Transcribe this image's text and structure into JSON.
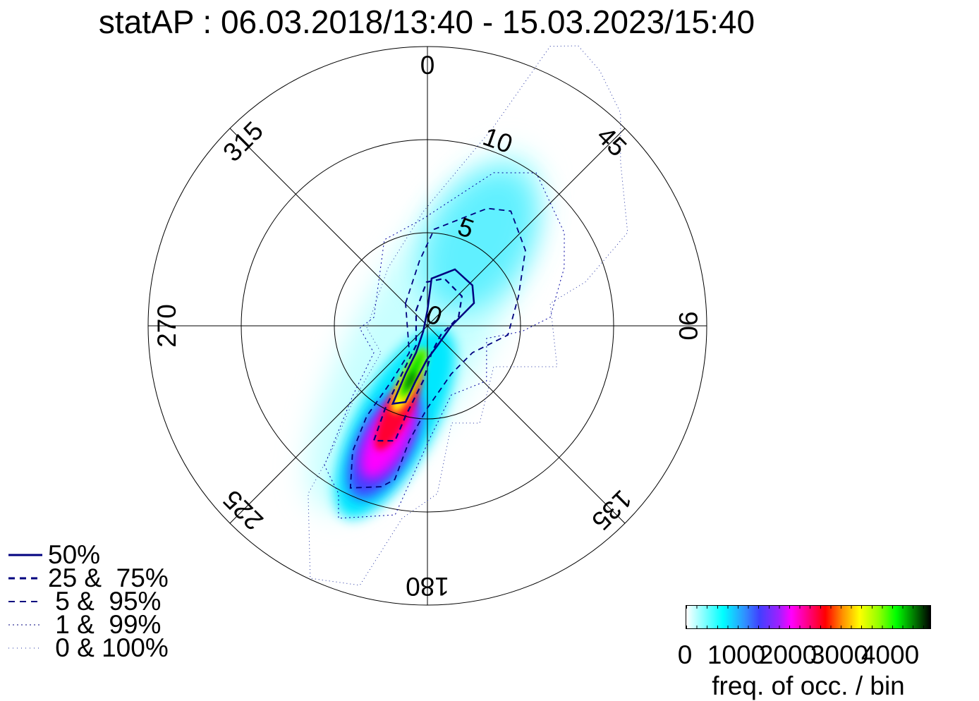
{
  "chart_data": {
    "type": "polar-contour",
    "title": "statAP : 06.03.2018/13:40 - 15.03.2023/15:40",
    "angular_ticks": [
      "0",
      "45",
      "90",
      "135",
      "180",
      "225",
      "270",
      "315"
    ],
    "radial_ticks": [
      "0",
      "5",
      "10"
    ],
    "radial_max": 15,
    "colorbar": {
      "label": "freq. of occ. / bin",
      "ticks": [
        "0",
        "1000",
        "2000",
        "3000",
        "4000"
      ],
      "range": [
        0,
        4770
      ]
    },
    "legend": [
      "50%",
      "25 &  75%",
      " 5 &  95%",
      " 1 &  99%",
      " 0 & 100%"
    ],
    "contours": [
      {
        "level": "50%",
        "points": [
          [
            0,
            0.83
          ],
          [
            5,
            2.55
          ],
          [
            26,
            3.37
          ],
          [
            48,
            3.25
          ],
          [
            64,
            2.78
          ],
          [
            90,
            1.29
          ],
          [
            153,
            1.19
          ],
          [
            181,
            1.82
          ],
          [
            192,
            3.02
          ],
          [
            196,
            4.26
          ],
          [
            204,
            4.58
          ],
          [
            204.5,
            2.83
          ],
          [
            203,
            1.56
          ],
          [
            217,
            0.38
          ]
        ]
      },
      {
        "level": "25 & 75%",
        "points": [
          [
            324,
            1.03
          ],
          [
            359,
            2.35
          ],
          [
            19.7,
            2.7
          ],
          [
            49.4,
            2.44
          ],
          [
            74.7,
            1.73
          ],
          [
            124,
            0.87
          ],
          [
            171,
            1.46
          ],
          [
            184.4,
            2.96
          ],
          [
            193.6,
            4.99
          ],
          [
            195.8,
            6.42
          ],
          [
            205,
            6.81
          ],
          [
            207,
            5.03
          ],
          [
            208,
            2.91
          ],
          [
            210,
            1.22
          ]
        ]
      },
      {
        "level": "5 & 95%",
        "points": [
          [
            316,
            1.69
          ],
          [
            353,
            3.51
          ],
          [
            4,
            5.2
          ],
          [
            27,
            7.08
          ],
          [
            36,
            7.62
          ],
          [
            52.4,
            6.64
          ],
          [
            72,
            5.14
          ],
          [
            96.5,
            4.35
          ],
          [
            120.7,
            2.82
          ],
          [
            153.4,
            2.88
          ],
          [
            180.5,
            4.47
          ],
          [
            189,
            6.25
          ],
          [
            192,
            8.44
          ],
          [
            196,
            8.99
          ],
          [
            205.4,
            9.64
          ],
          [
            210.8,
            7.85
          ],
          [
            213.9,
            5.84
          ],
          [
            213,
            3.53
          ],
          [
            214,
            1.74
          ]
        ]
      },
      {
        "level": "1 & 99%",
        "points": [
          [
            268,
            3.64
          ],
          [
            279,
            2.91
          ],
          [
            333.4,
            5.17
          ],
          [
            357.7,
            5.76
          ],
          [
            23.4,
            8.96
          ],
          [
            35.4,
            10.08
          ],
          [
            55.8,
            8.89
          ],
          [
            67,
            7.98
          ],
          [
            86,
            6.61
          ],
          [
            93.4,
            5.08
          ],
          [
            102,
            3.25
          ],
          [
            133,
            4.34
          ],
          [
            161,
            3.93
          ],
          [
            178.5,
            5.99
          ],
          [
            189.7,
            10.3
          ],
          [
            204.8,
            11.39
          ],
          [
            207.9,
            10.2
          ],
          [
            216.4,
            9.32
          ],
          [
            227,
            5.47
          ],
          [
            243.4,
            3.22
          ]
        ]
      },
      {
        "level": "0 & 100%",
        "points": [
          [
            268,
            3.26
          ],
          [
            325.7,
            3.76
          ],
          [
            357.9,
            6.14
          ],
          [
            18.4,
            11.26
          ],
          [
            23.7,
            16.4
          ],
          [
            28.3,
            17.08
          ],
          [
            34,
            16.54
          ],
          [
            42.2,
            15.44
          ],
          [
            49.7,
            13.6
          ],
          [
            65,
            11.86
          ],
          [
            74.5,
            8.8
          ],
          [
            79.6,
            6.7
          ],
          [
            107.5,
            7.3
          ],
          [
            121.7,
            4.18
          ],
          [
            151.8,
            5.93
          ],
          [
            166,
            5.38
          ],
          [
            176.6,
            9.03
          ],
          [
            187.5,
            10.43
          ],
          [
            194.6,
            14.4
          ],
          [
            204.9,
            14.95
          ],
          [
            215.4,
            11.06
          ],
          [
            217.4,
            8.48
          ],
          [
            224.5,
            5.73
          ],
          [
            240,
            2.88
          ]
        ]
      }
    ],
    "density_peaks": [
      {
        "dir": 205,
        "speed": 6.5,
        "freq": 4700
      },
      {
        "dir": 206,
        "speed": 8.0,
        "freq": 3000
      },
      {
        "dir": 210,
        "speed": 9.5,
        "freq": 2000
      },
      {
        "dir": 30,
        "speed": 4.5,
        "freq": 500
      }
    ],
    "colors": {
      "contour": "#00007f",
      "axis": "#000000"
    }
  }
}
